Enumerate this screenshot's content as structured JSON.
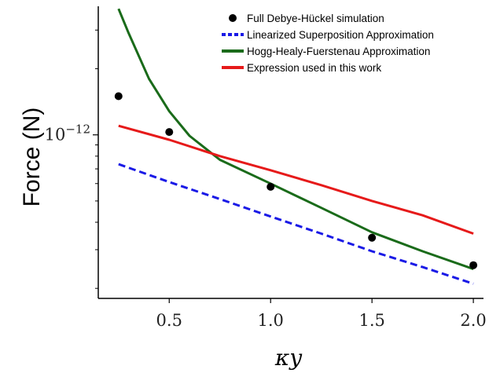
{
  "chart_data": {
    "type": "line",
    "xlabel": "κy",
    "ylabel": "Force (N)",
    "xlim": [
      0.15,
      2.05
    ],
    "ylim": [
      1.8e-13,
      3.85e-12
    ],
    "y_scale": "log",
    "x_ticks": [
      {
        "value": 0.5,
        "label": "0.5"
      },
      {
        "value": 1.0,
        "label": "1.0"
      },
      {
        "value": 1.5,
        "label": "1.5"
      },
      {
        "value": 2.0,
        "label": "2.0"
      }
    ],
    "y_ticks": [
      {
        "value": 1e-12,
        "label_base": "10",
        "label_exp": "−12"
      }
    ],
    "grid": false,
    "legend_position": "top-right",
    "series": [
      {
        "name": "Full Debye-Hückel simulation",
        "kind": "scatter",
        "color": "#000000",
        "x": [
          0.25,
          0.5,
          1.0,
          1.5,
          2.0
        ],
        "y": [
          1.5e-12,
          1.03e-12,
          5.8e-13,
          3.4e-13,
          2.55e-13
        ]
      },
      {
        "name": "Linearized Superposition Approximation",
        "kind": "line",
        "style": "dashed",
        "color": "#1a1ae6",
        "x": [
          0.25,
          0.5,
          0.75,
          1.0,
          1.25,
          1.5,
          1.75,
          2.0
        ],
        "y": [
          7.35e-13,
          6.1e-13,
          5.1e-13,
          4.25e-13,
          3.55e-13,
          2.95e-13,
          2.5e-13,
          2.1e-13
        ]
      },
      {
        "name": "Hogg-Healy-Fuerstenau Approximation",
        "kind": "line",
        "style": "solid",
        "color": "#1a6b1a",
        "x": [
          0.25,
          0.3,
          0.4,
          0.5,
          0.6,
          0.75,
          1.0,
          1.25,
          1.5,
          1.75,
          2.0
        ],
        "y": [
          3.75e-12,
          2.9e-12,
          1.8e-12,
          1.28e-12,
          9.9e-13,
          7.7e-13,
          6e-13,
          4.65e-13,
          3.6e-13,
          2.95e-13,
          2.45e-13
        ]
      },
      {
        "name": "Expression used in this work",
        "kind": "line",
        "style": "solid",
        "color": "#e61a1a",
        "x": [
          0.25,
          0.5,
          0.75,
          1.0,
          1.25,
          1.5,
          1.75,
          2.0
        ],
        "y": [
          1.1e-12,
          9.5e-13,
          8e-13,
          6.9e-13,
          5.9e-13,
          5e-13,
          4.3e-13,
          3.55e-13
        ]
      }
    ]
  }
}
